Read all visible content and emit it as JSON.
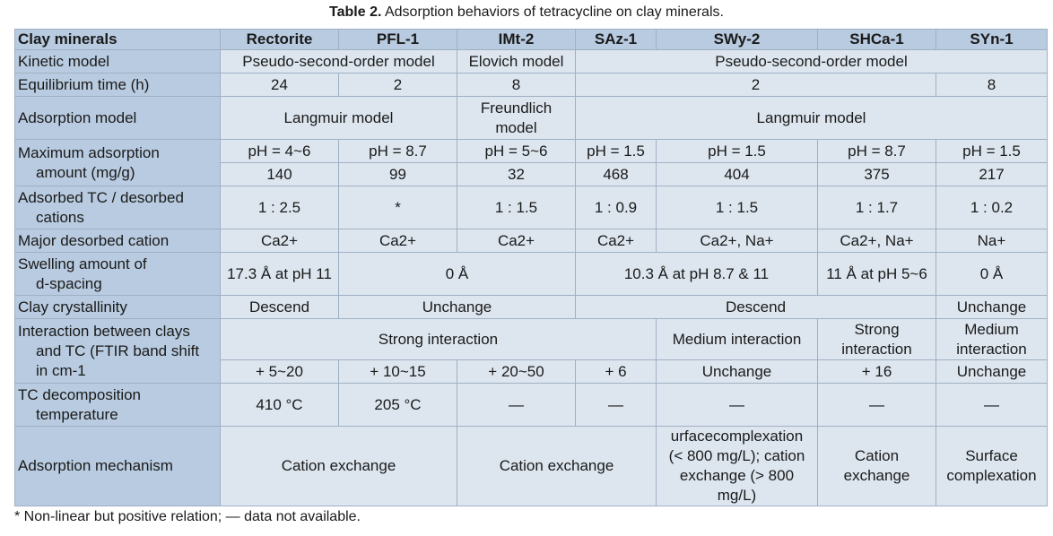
{
  "caption": {
    "label": "Table 2.",
    "text": " Adsorption behaviors of tetracycline on clay minerals."
  },
  "header": [
    "Clay minerals",
    "Rectorite",
    "PFL-1",
    "IMt-2",
    "SAz-1",
    "SWy-2",
    "SHCa-1",
    "SYn-1"
  ],
  "rows": {
    "kinetic": {
      "label": "Kinetic model",
      "a": "Pseudo-second-order model",
      "b": "Elovich model",
      "c": "Pseudo-second-order model"
    },
    "equilibrium": {
      "label": "Equilibrium time (h)",
      "rectorite": "24",
      "pfl": "2",
      "imt": "8",
      "mid": "2",
      "syn": "8"
    },
    "adsorption_model": {
      "label": "Adsorption model",
      "a": "Langmuir model",
      "b1": "Freundlich",
      "b2": "model",
      "c": "Langmuir model"
    },
    "max_adsorption": {
      "label1": "Maximum adsorption",
      "label2": "amount (mg/g)",
      "ph": [
        "pH = 4~6",
        "pH = 8.7",
        "pH = 5~6",
        "pH = 1.5",
        "pH = 1.5",
        "pH = 8.7",
        "pH = 1.5"
      ],
      "amount": [
        "140",
        "99",
        "32",
        "468",
        "404",
        "375",
        "217"
      ]
    },
    "ratio": {
      "label1": "Adsorbed TC / desorbed",
      "label2": "cations",
      "values": [
        "1 : 2.5",
        "*",
        "1 : 1.5",
        "1 : 0.9",
        "1 : 1.5",
        "1 : 1.7",
        "1 : 0.2"
      ]
    },
    "cation": {
      "label": "Major desorbed cation",
      "values": [
        "Ca2+",
        "Ca2+",
        "Ca2+",
        "Ca2+",
        "Ca2+, Na+",
        "Ca2+, Na+",
        "Na+"
      ]
    },
    "swelling": {
      "label1": "Swelling amount of",
      "label2": "d-spacing",
      "rectorite": "17.3 Å at pH 11",
      "b": "0 Å",
      "c": "10.3 Å at pH 8.7 & 11",
      "shca": "11 Å at pH 5~6",
      "syn": "0 Å"
    },
    "crystallinity": {
      "label": "Clay crystallinity",
      "a": "Descend",
      "b": "Unchange",
      "c": "Descend",
      "d": "Unchange"
    },
    "interaction": {
      "label1": "Interaction between clays",
      "label2": "and TC (FTIR band shift",
      "label3": "in cm-1",
      "strong": "Strong interaction",
      "medium": "Medium interaction",
      "shca1": "Strong",
      "shca2": "interaction",
      "syn1": "Medium",
      "syn2": "interaction",
      "shift": [
        "+ 5~20",
        "+ 10~15",
        "+ 20~50",
        "+ 6",
        "Unchange",
        "+ 16",
        "Unchange"
      ]
    },
    "decomposition": {
      "label1": "TC decomposition",
      "label2": "temperature",
      "values": [
        "410 °C",
        "205 °C",
        "—",
        "—",
        "—",
        "—",
        "—"
      ]
    },
    "mechanism": {
      "label": "Adsorption mechanism",
      "a": "Cation exchange",
      "b": "Cation exchange",
      "swy1": "urfacecomplexation",
      "swy2": "(< 800 mg/L); cation",
      "swy3": "exchange (> 800 mg/L)",
      "shca1": "Cation",
      "shca2": "exchange",
      "syn1": "Surface",
      "syn2": "complexation"
    }
  },
  "footnote": "* Non-linear but positive relation; — data not available."
}
